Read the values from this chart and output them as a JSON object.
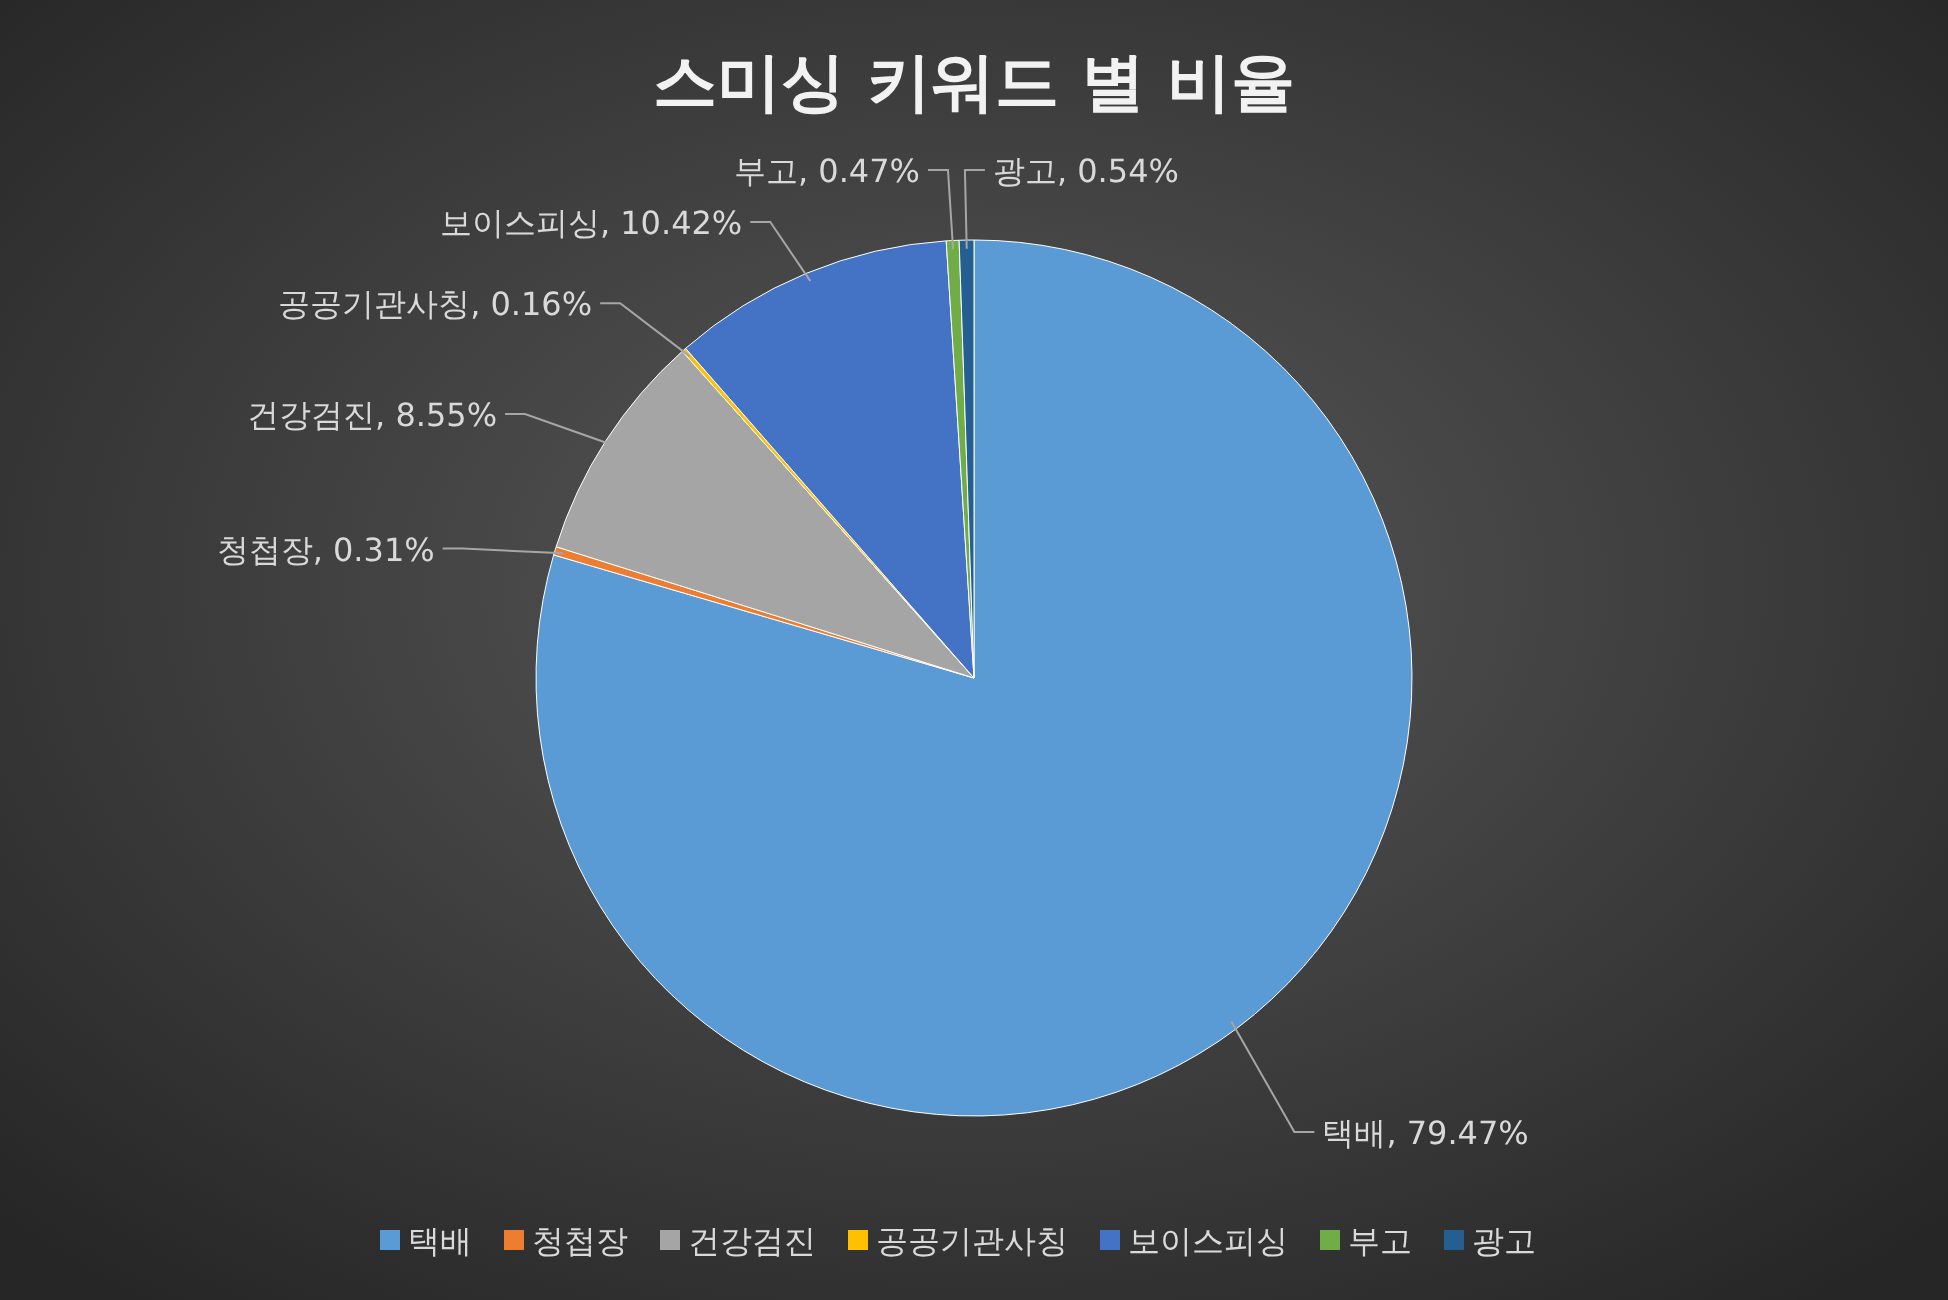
{
  "chart_data": {
    "type": "pie",
    "title": "스미싱 키워드 별 비율",
    "categories": [
      "택배",
      "청첩장",
      "건강검진",
      "공공기관사칭",
      "보이스피싱",
      "부고",
      "광고"
    ],
    "values": [
      79.47,
      0.31,
      8.55,
      0.16,
      10.42,
      0.47,
      0.54
    ],
    "value_labels": [
      "택배, 79.47%",
      "청첩장, 0.31%",
      "건강검진, 8.55%",
      "공공기관사칭, 0.16%",
      "보이스피싱, 10.42%",
      "부고, 0.47%",
      "광고, 0.54%"
    ],
    "colors": [
      "#5b9bd5",
      "#ed7d31",
      "#a5a5a5",
      "#ffc000",
      "#4472c4",
      "#70ad47",
      "#255e91"
    ],
    "legend": "bottom"
  }
}
